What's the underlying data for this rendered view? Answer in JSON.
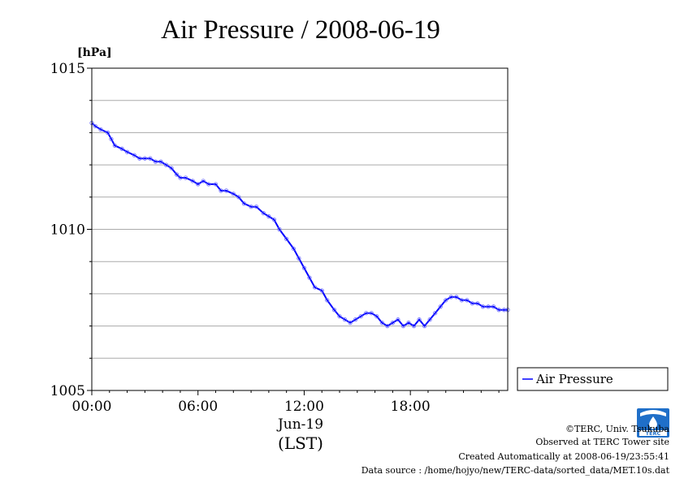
{
  "chart_data": {
    "type": "line",
    "title": "Air Pressure / 2008-06-19",
    "ylabel": "[hPa]",
    "xlabel_date": "Jun-19",
    "xlabel_tz": "(LST)",
    "ylim": [
      1005,
      1015
    ],
    "xlim": [
      0,
      23.5
    ],
    "x_ticks": [
      {
        "value": 0,
        "label": "00:00"
      },
      {
        "value": 6,
        "label": "06:00"
      },
      {
        "value": 12,
        "label": "12:00"
      },
      {
        "value": 18,
        "label": "18:00"
      }
    ],
    "y_ticks": [
      {
        "value": 1005,
        "label": "1005"
      },
      {
        "value": 1010,
        "label": "1010"
      },
      {
        "value": 1015,
        "label": "1015"
      }
    ],
    "grid": true,
    "legend_position": "right",
    "series": [
      {
        "name": "Air Pressure",
        "color": "#0000ff",
        "x": [
          0,
          0.2,
          0.5,
          0.9,
          1.1,
          1.3,
          1.7,
          2.0,
          2.4,
          2.7,
          3.0,
          3.3,
          3.6,
          3.9,
          4.2,
          4.5,
          4.8,
          5.0,
          5.3,
          5.7,
          6.0,
          6.3,
          6.6,
          7.0,
          7.3,
          7.6,
          8.0,
          8.3,
          8.6,
          9.0,
          9.3,
          9.7,
          10.0,
          10.3,
          10.6,
          11.0,
          11.4,
          11.7,
          12.0,
          12.3,
          12.6,
          13.0,
          13.3,
          13.7,
          14.0,
          14.3,
          14.6,
          14.9,
          15.2,
          15.5,
          15.8,
          16.1,
          16.4,
          16.7,
          17.0,
          17.3,
          17.6,
          17.9,
          18.2,
          18.5,
          18.8,
          19.1,
          19.4,
          19.7,
          20.0,
          20.3,
          20.6,
          20.9,
          21.2,
          21.5,
          21.8,
          22.1,
          22.4,
          22.7,
          23.0,
          23.3,
          23.5
        ],
        "y": [
          1013.3,
          1013.2,
          1013.1,
          1013.0,
          1012.8,
          1012.6,
          1012.5,
          1012.4,
          1012.3,
          1012.2,
          1012.2,
          1012.2,
          1012.1,
          1012.1,
          1012.0,
          1011.9,
          1011.7,
          1011.6,
          1011.6,
          1011.5,
          1011.4,
          1011.5,
          1011.4,
          1011.4,
          1011.2,
          1011.2,
          1011.1,
          1011.0,
          1010.8,
          1010.7,
          1010.7,
          1010.5,
          1010.4,
          1010.3,
          1010.0,
          1009.7,
          1009.4,
          1009.1,
          1008.8,
          1008.5,
          1008.2,
          1008.1,
          1007.8,
          1007.5,
          1007.3,
          1007.2,
          1007.1,
          1007.2,
          1007.3,
          1007.4,
          1007.4,
          1007.3,
          1007.1,
          1007.0,
          1007.1,
          1007.2,
          1007.0,
          1007.1,
          1007.0,
          1007.2,
          1007.0,
          1007.2,
          1007.4,
          1007.6,
          1007.8,
          1007.9,
          1007.9,
          1007.8,
          1007.8,
          1007.7,
          1007.7,
          1007.6,
          1007.6,
          1007.6,
          1007.5,
          1007.5,
          1007.5
        ]
      }
    ]
  },
  "footer": {
    "copyright": "©TERC, Univ. Tsukuba",
    "observed": "Observed at TERC Tower site",
    "created": "Created Automatically at 2008-06-19/23:55:41",
    "source": "Data source : /home/hojyo/new/TERC-data/sorted_data/MET.10s.dat",
    "logo_text": "TERC"
  },
  "colors": {
    "series": "#0000ff",
    "grid": "#aaaaaa",
    "logo": "#1f6fc9"
  }
}
